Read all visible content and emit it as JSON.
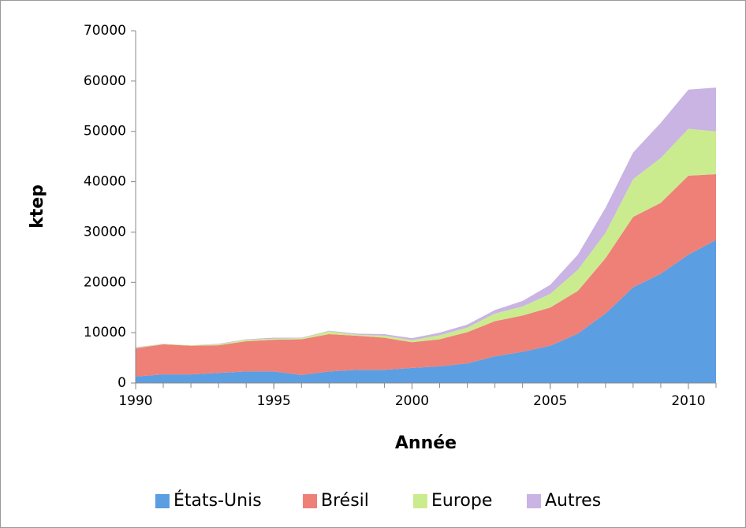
{
  "chart_data": {
    "type": "area",
    "x_label": "Année",
    "y_label": "ktep",
    "x": [
      1990,
      1991,
      1992,
      1993,
      1994,
      1995,
      1996,
      1997,
      1998,
      1999,
      2000,
      2001,
      2002,
      2003,
      2004,
      2005,
      2006,
      2007,
      2008,
      2009,
      2010,
      2011
    ],
    "series": [
      {
        "name": "États-Unis",
        "color": "#5b9ee2",
        "values": [
          1300,
          1700,
          1700,
          2000,
          2300,
          2300,
          1600,
          2300,
          2600,
          2600,
          3000,
          3300,
          3900,
          5300,
          6200,
          7400,
          9800,
          13800,
          19000,
          21700,
          25500,
          28400
        ]
      },
      {
        "name": "Brésil",
        "color": "#ef8078",
        "values": [
          5600,
          6000,
          5700,
          5500,
          6000,
          6300,
          7100,
          7400,
          6800,
          6400,
          5100,
          5400,
          6200,
          7000,
          7200,
          7600,
          8500,
          11000,
          14000,
          14100,
          15700,
          13100
        ]
      },
      {
        "name": "Europe",
        "color": "#cbec8e",
        "values": [
          100,
          100,
          100,
          200,
          300,
          200,
          200,
          600,
          200,
          400,
          400,
          800,
          900,
          1500,
          1800,
          2700,
          4200,
          5000,
          7500,
          8900,
          9300,
          8500
        ]
      },
      {
        "name": "Autres",
        "color": "#c9b4e4",
        "values": [
          100,
          0,
          0,
          100,
          100,
          200,
          100,
          100,
          200,
          300,
          400,
          500,
          600,
          700,
          1100,
          1800,
          3000,
          5000,
          5300,
          7000,
          7800,
          8700
        ]
      }
    ],
    "xlim": [
      1990,
      2011
    ],
    "xticks": [
      1990,
      1995,
      2000,
      2005,
      2010
    ],
    "ylim": [
      0,
      70000
    ],
    "yticks": [
      0,
      10000,
      20000,
      30000,
      40000,
      50000,
      60000,
      70000
    ],
    "stacked": true,
    "legend": "bottom"
  }
}
